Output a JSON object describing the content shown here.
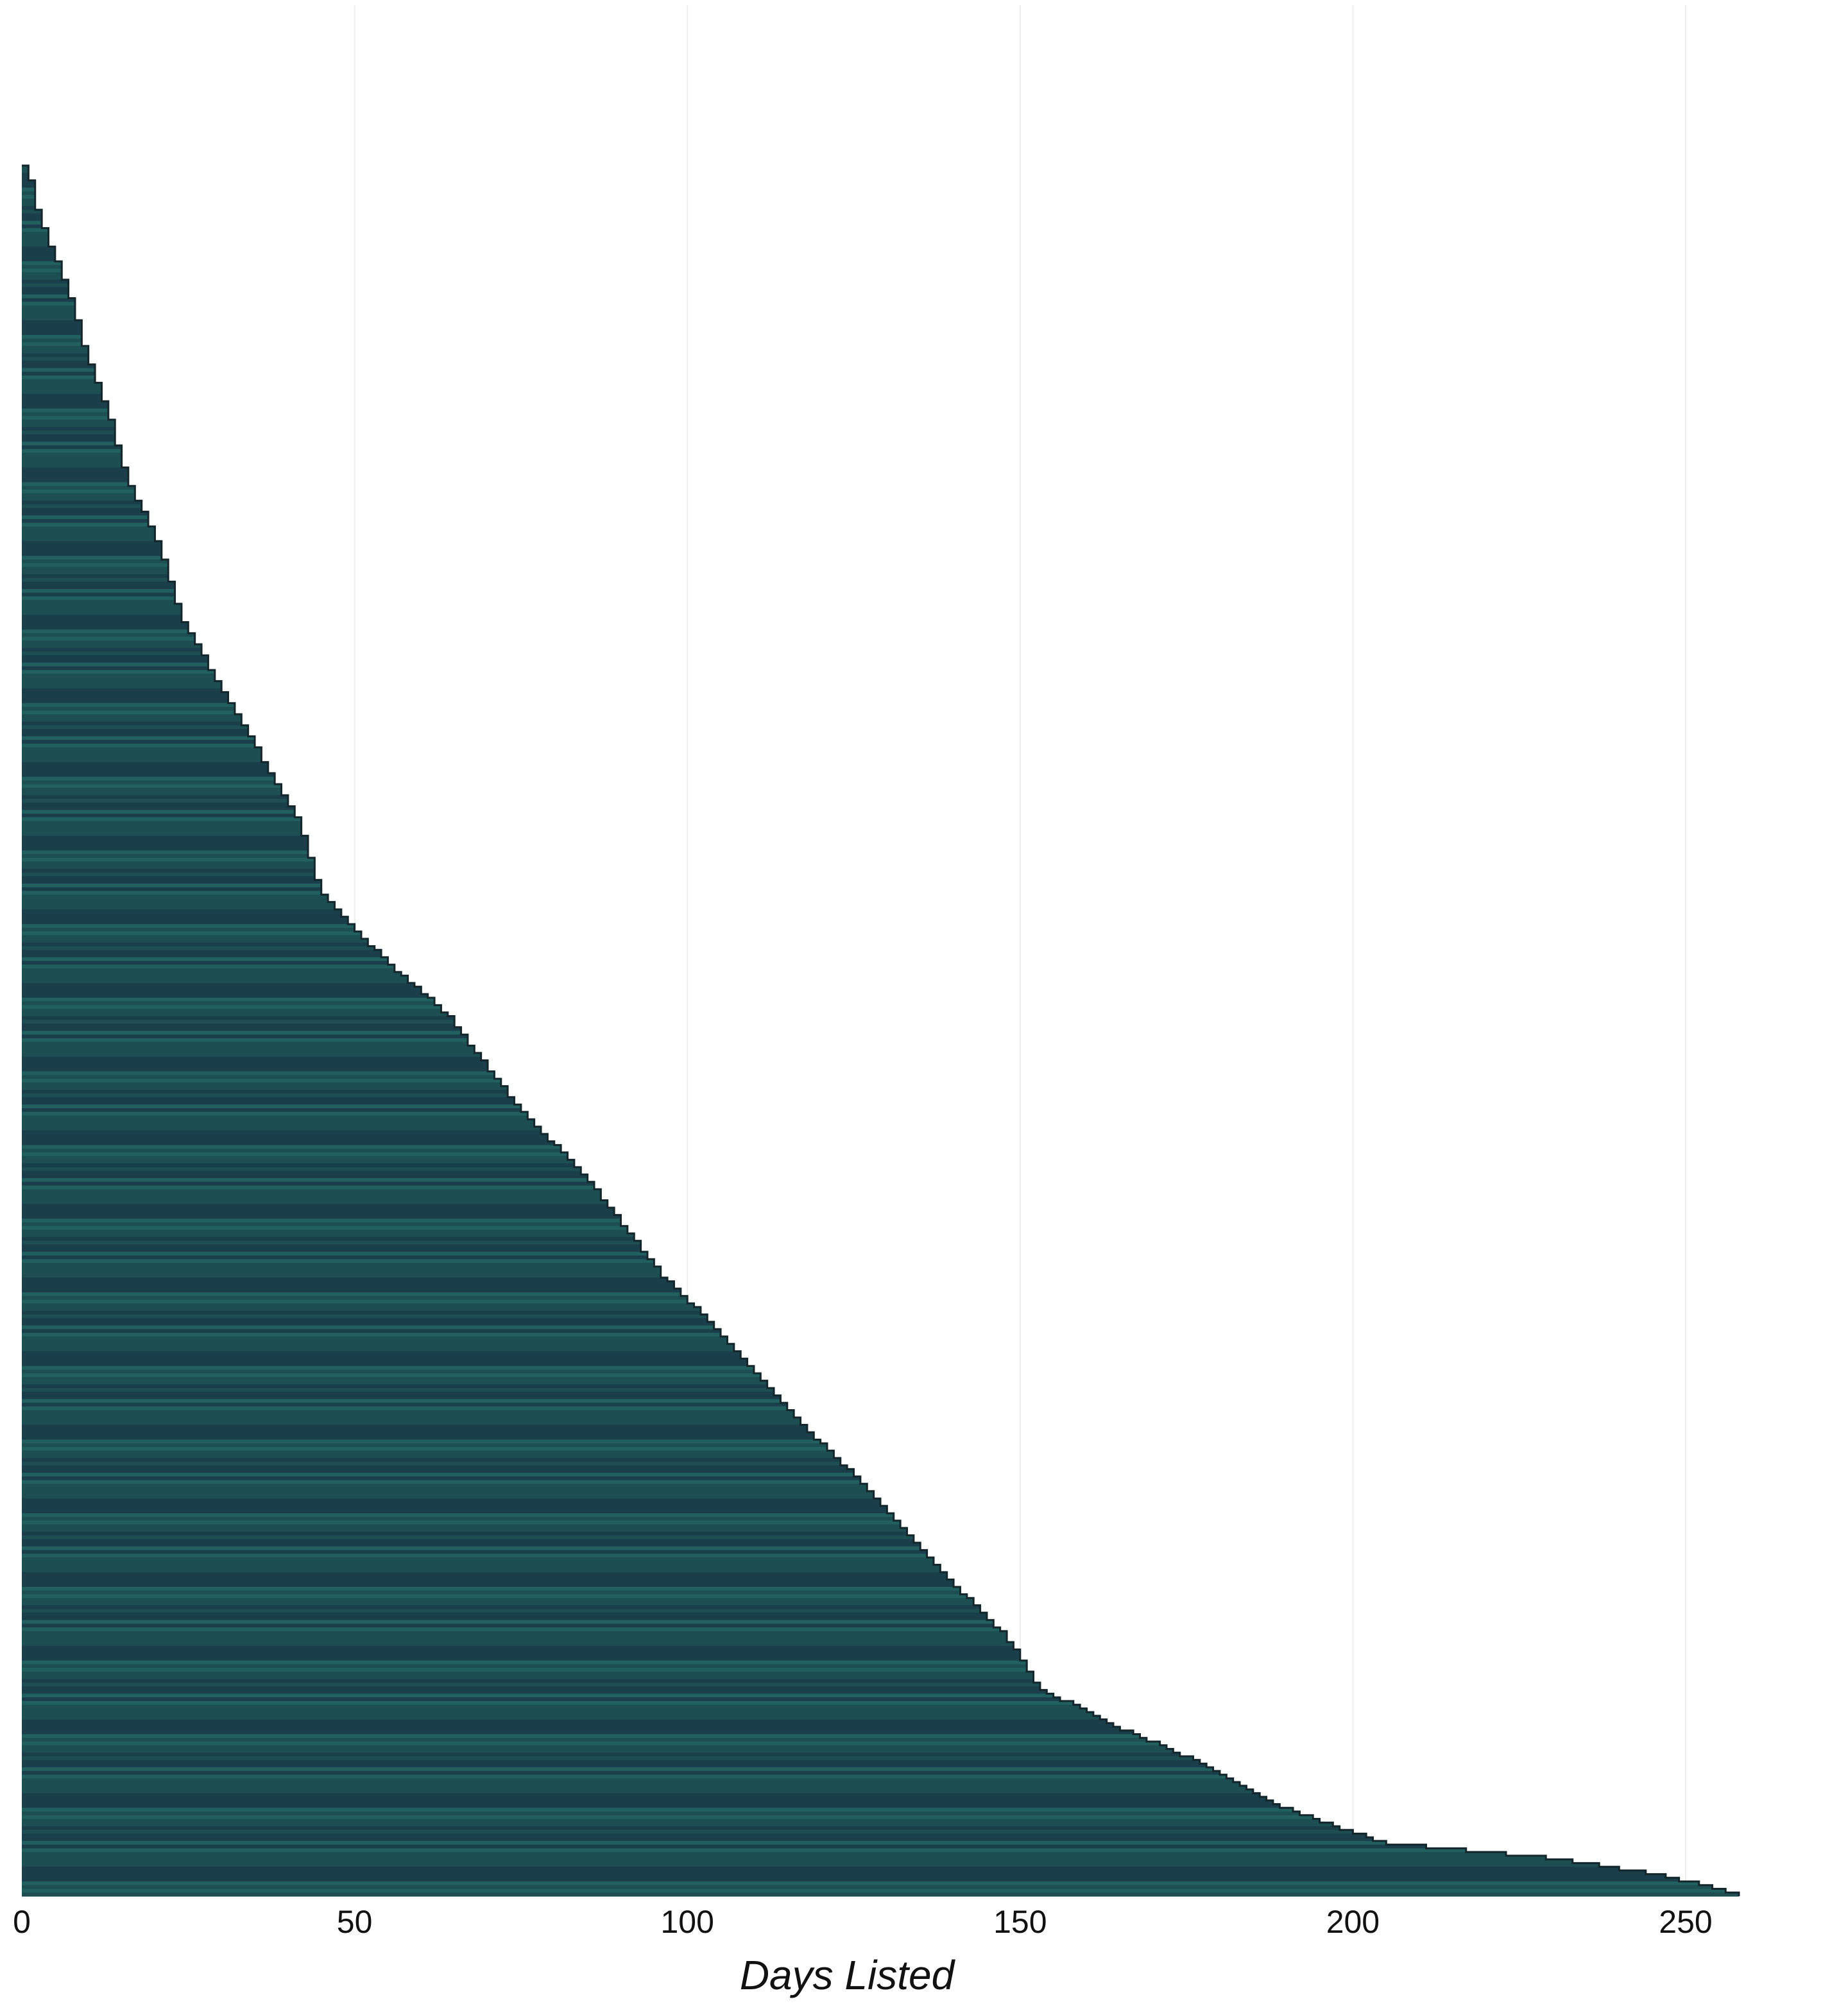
{
  "chart_data": {
    "type": "bar",
    "orientation": "horizontal",
    "title": "",
    "xlabel": "Days Listed",
    "ylabel": "",
    "xlim": [
      0,
      258
    ],
    "x_ticks": [
      0,
      50,
      100,
      150,
      200,
      250
    ],
    "grid": "vertical",
    "legend": "none",
    "colors": {
      "bar_a": "#1d4f52",
      "bar_b": "#1b3f4a",
      "bar_c": "#21605f",
      "bar_outline": "#12262c",
      "grid": "#eeeeee"
    },
    "bar_count": 470,
    "bar_order": "ascending-top-to-bottom",
    "profile": {
      "comment": "Sorted days-listed values sampled at quantile positions (0 = top bar, 1 = bottom bar).",
      "quantile": [
        0.0,
        0.017,
        0.03,
        0.05,
        0.08,
        0.11,
        0.14,
        0.18,
        0.22,
        0.26,
        0.3,
        0.34,
        0.38,
        0.42,
        0.46,
        0.49,
        0.52,
        0.55,
        0.58,
        0.61,
        0.64,
        0.67,
        0.7,
        0.73,
        0.76,
        0.79,
        0.82,
        0.85,
        0.88,
        0.9,
        0.92,
        0.94,
        0.95,
        0.96,
        0.97,
        0.975,
        0.98,
        0.99,
        1.0
      ],
      "days": [
        1,
        2,
        3,
        5,
        8,
        10,
        13,
        16,
        21,
        24,
        30,
        36,
        42,
        45,
        55,
        64,
        70,
        76,
        84,
        90,
        96,
        104,
        111,
        118,
        126,
        133,
        140,
        148,
        153,
        163,
        175,
        185,
        190,
        197,
        205,
        219,
        232,
        248,
        258
      ]
    }
  }
}
